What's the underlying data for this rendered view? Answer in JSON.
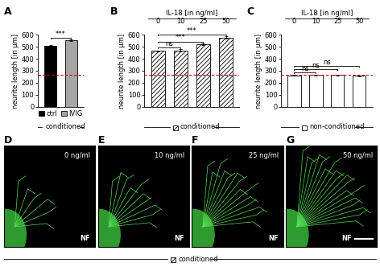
{
  "chart_data": [
    {
      "type": "bar",
      "panel": "A",
      "categories": [
        "ctrl",
        "IVIG"
      ],
      "values": [
        510,
        555
      ],
      "errors": [
        5,
        5
      ],
      "colors": [
        "#000000",
        "#a6a6a6"
      ],
      "ylim": [
        0,
        600
      ],
      "yticks": [
        0,
        100,
        200,
        300,
        400,
        500,
        600
      ],
      "y_label": "neurite length [in µm]",
      "legend": "upper center",
      "tick_labels": "y",
      "reference_line": {
        "value": 265,
        "color": "#cc0000"
      },
      "comparisons": [
        {
          "between": [
            "ctrl",
            "IVIG"
          ],
          "label": "***"
        }
      ],
      "group_label": "conditioned"
    },
    {
      "type": "bar",
      "panel": "B",
      "categories": [
        "0",
        "10",
        "25",
        "50"
      ],
      "values": [
        465,
        470,
        520,
        575
      ],
      "errors": [
        5,
        8,
        8,
        10
      ],
      "color": "#ffffff",
      "ylim": [
        0,
        600
      ],
      "yticks": [
        0,
        100,
        200,
        300,
        400,
        500,
        600
      ],
      "y_label": "neurite length [in µm]",
      "x_label": "IL-18 [in ng/ml]",
      "reference_line": {
        "value": 265,
        "color": "#cc0000"
      },
      "comparisons": [
        {
          "between": [
            "0",
            "10"
          ],
          "label": "ns"
        },
        {
          "between": [
            "0",
            "25"
          ],
          "label": "***"
        },
        {
          "between": [
            "0",
            "50"
          ],
          "label": "***"
        }
      ],
      "group_label": "conditioned"
    },
    {
      "type": "bar",
      "panel": "C",
      "categories": [
        "0",
        "10",
        "25",
        "50"
      ],
      "values": [
        262,
        265,
        265,
        258
      ],
      "errors": [
        4,
        4,
        4,
        4
      ],
      "color": "#ffffff",
      "ylim": [
        0,
        600
      ],
      "yticks": [
        0,
        100,
        200,
        300,
        400,
        500,
        600
      ],
      "y_label": "neurite length [in µm]",
      "x_label": "IL-18 [in ng/ml]",
      "reference_line": {
        "value": 265,
        "color": "#cc0000"
      },
      "comparisons": [
        {
          "between": [
            "0",
            "10"
          ],
          "label": "ns"
        },
        {
          "between": [
            "0",
            "25"
          ],
          "label": "ns"
        },
        {
          "between": [
            "0",
            "50"
          ],
          "label": "ns"
        }
      ],
      "group_label": "non-conditioned"
    }
  ],
  "images": {
    "group_label": "conditioned",
    "panels": [
      {
        "panel": "D",
        "concentration": "0 ng/ml",
        "stain": "NF"
      },
      {
        "panel": "E",
        "concentration": "10 ng/ml",
        "stain": "NF"
      },
      {
        "panel": "F",
        "concentration": "25 ng/ml",
        "stain": "NF"
      },
      {
        "panel": "G",
        "concentration": "50 ng/ml",
        "stain": "NF"
      }
    ]
  }
}
